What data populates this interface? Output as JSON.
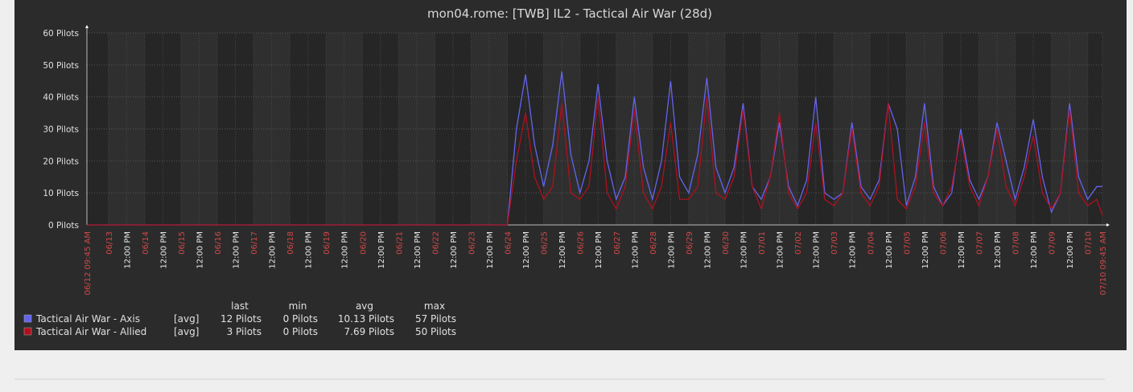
{
  "chart_data": {
    "type": "line",
    "title": "mon04.rome: [TWB] IL2 - Tactical Air War (28d)",
    "xlim": [
      "06/12 09:45 AM",
      "07/10 09:45 AM"
    ],
    "ylim": [
      0,
      60
    ],
    "yticks": [
      {
        "value": 0,
        "label": "0 Pilots"
      },
      {
        "value": 10,
        "label": "10 Pilots"
      },
      {
        "value": 20,
        "label": "20 Pilots"
      },
      {
        "value": 30,
        "label": "30 Pilots"
      },
      {
        "value": 40,
        "label": "40 Pilots"
      },
      {
        "value": 50,
        "label": "50 Pilots"
      },
      {
        "value": 60,
        "label": "60 Pilots"
      }
    ],
    "xticks": [
      {
        "value": "06/12 09:45 AM",
        "label": "06/12 09:45 AM"
      },
      {
        "value": "06/13 12:00 AM",
        "label": "06/13"
      },
      {
        "value": "06/13 12:00 PM",
        "label": "12:00 PM"
      },
      {
        "value": "06/14 12:00 AM",
        "label": "06/14"
      },
      {
        "value": "06/14 12:00 PM",
        "label": "12:00 PM"
      },
      {
        "value": "06/15 12:00 AM",
        "label": "06/15"
      },
      {
        "value": "06/15 12:00 PM",
        "label": "12:00 PM"
      },
      {
        "value": "06/16 12:00 AM",
        "label": "06/16"
      },
      {
        "value": "06/16 12:00 PM",
        "label": "12:00 PM"
      },
      {
        "value": "06/17 12:00 AM",
        "label": "06/17"
      },
      {
        "value": "06/17 12:00 PM",
        "label": "12:00 PM"
      },
      {
        "value": "06/18 12:00 AM",
        "label": "06/18"
      },
      {
        "value": "06/18 12:00 PM",
        "label": "12:00 PM"
      },
      {
        "value": "06/19 12:00 AM",
        "label": "06/19"
      },
      {
        "value": "06/19 12:00 PM",
        "label": "12:00 PM"
      },
      {
        "value": "06/20 12:00 AM",
        "label": "06/20"
      },
      {
        "value": "06/20 12:00 PM",
        "label": "12:00 PM"
      },
      {
        "value": "06/21 12:00 AM",
        "label": "06/21"
      },
      {
        "value": "06/21 12:00 PM",
        "label": "12:00 PM"
      },
      {
        "value": "06/22 12:00 AM",
        "label": "06/22"
      },
      {
        "value": "06/22 12:00 PM",
        "label": "12:00 PM"
      },
      {
        "value": "06/23 12:00 AM",
        "label": "06/23"
      },
      {
        "value": "06/23 12:00 PM",
        "label": "12:00 PM"
      },
      {
        "value": "06/24 12:00 AM",
        "label": "06/24"
      },
      {
        "value": "06/24 12:00 PM",
        "label": "12:00 PM"
      },
      {
        "value": "06/25 12:00 AM",
        "label": "06/25"
      },
      {
        "value": "06/25 12:00 PM",
        "label": "12:00 PM"
      },
      {
        "value": "06/26 12:00 AM",
        "label": "06/26"
      },
      {
        "value": "06/26 12:00 PM",
        "label": "12:00 PM"
      },
      {
        "value": "06/27 12:00 AM",
        "label": "06/27"
      },
      {
        "value": "06/27 12:00 PM",
        "label": "12:00 PM"
      },
      {
        "value": "06/28 12:00 AM",
        "label": "06/28"
      },
      {
        "value": "06/28 12:00 PM",
        "label": "12:00 PM"
      },
      {
        "value": "06/29 12:00 AM",
        "label": "06/29"
      },
      {
        "value": "06/29 12:00 PM",
        "label": "12:00 PM"
      },
      {
        "value": "06/30 12:00 AM",
        "label": "06/30"
      },
      {
        "value": "06/30 12:00 PM",
        "label": "12:00 PM"
      },
      {
        "value": "07/01 12:00 AM",
        "label": "07/01"
      },
      {
        "value": "07/01 12:00 PM",
        "label": "12:00 PM"
      },
      {
        "value": "07/02 12:00 AM",
        "label": "07/02"
      },
      {
        "value": "07/02 12:00 PM",
        "label": "12:00 PM"
      },
      {
        "value": "07/03 12:00 AM",
        "label": "07/03"
      },
      {
        "value": "07/03 12:00 PM",
        "label": "12:00 PM"
      },
      {
        "value": "07/04 12:00 AM",
        "label": "07/04"
      },
      {
        "value": "07/04 12:00 PM",
        "label": "12:00 PM"
      },
      {
        "value": "07/05 12:00 AM",
        "label": "07/05"
      },
      {
        "value": "07/05 12:00 PM",
        "label": "12:00 PM"
      },
      {
        "value": "07/06 12:00 AM",
        "label": "07/06"
      },
      {
        "value": "07/06 12:00 PM",
        "label": "12:00 PM"
      },
      {
        "value": "07/07 12:00 AM",
        "label": "07/07"
      },
      {
        "value": "07/07 12:00 PM",
        "label": "12:00 PM"
      },
      {
        "value": "07/08 12:00 AM",
        "label": "07/08"
      },
      {
        "value": "07/08 12:00 PM",
        "label": "12:00 PM"
      },
      {
        "value": "07/09 12:00 AM",
        "label": "07/09"
      },
      {
        "value": "07/09 12:00 PM",
        "label": "12:00 PM"
      },
      {
        "value": "07/10 12:00 AM",
        "label": "07/10"
      },
      {
        "value": "07/10 09:45 AM",
        "label": "07/10 09:45 AM"
      }
    ],
    "x": [
      "06/12 09:45 AM",
      "06/24 12:00 AM",
      "06/24 06:00 AM",
      "06/24 12:00 PM",
      "06/24 06:00 PM",
      "06/25 12:00 AM",
      "06/25 06:00 AM",
      "06/25 12:00 PM",
      "06/25 06:00 PM",
      "06/26 12:00 AM",
      "06/26 06:00 AM",
      "06/26 12:00 PM",
      "06/26 06:00 PM",
      "06/27 12:00 AM",
      "06/27 06:00 AM",
      "06/27 12:00 PM",
      "06/27 06:00 PM",
      "06/28 12:00 AM",
      "06/28 06:00 AM",
      "06/28 12:00 PM",
      "06/28 06:00 PM",
      "06/29 12:00 AM",
      "06/29 06:00 AM",
      "06/29 12:00 PM",
      "06/29 06:00 PM",
      "06/30 12:00 AM",
      "06/30 06:00 AM",
      "06/30 12:00 PM",
      "06/30 06:00 PM",
      "07/01 12:00 AM",
      "07/01 06:00 AM",
      "07/01 12:00 PM",
      "07/01 06:00 PM",
      "07/02 12:00 AM",
      "07/02 06:00 AM",
      "07/02 12:00 PM",
      "07/02 06:00 PM",
      "07/03 12:00 AM",
      "07/03 06:00 AM",
      "07/03 12:00 PM",
      "07/03 06:00 PM",
      "07/04 12:00 AM",
      "07/04 06:00 AM",
      "07/04 12:00 PM",
      "07/04 06:00 PM",
      "07/05 12:00 AM",
      "07/05 06:00 AM",
      "07/05 12:00 PM",
      "07/05 06:00 PM",
      "07/06 12:00 AM",
      "07/06 06:00 AM",
      "07/06 12:00 PM",
      "07/06 06:00 PM",
      "07/07 12:00 AM",
      "07/07 06:00 AM",
      "07/07 12:00 PM",
      "07/07 06:00 PM",
      "07/08 12:00 AM",
      "07/08 06:00 AM",
      "07/08 12:00 PM",
      "07/08 06:00 PM",
      "07/09 12:00 AM",
      "07/09 06:00 AM",
      "07/09 12:00 PM",
      "07/09 06:00 PM",
      "07/10 12:00 AM",
      "07/10 06:00 AM",
      "07/10 09:45 AM"
    ],
    "legend_headers": [
      "last",
      "min",
      "avg",
      "max"
    ],
    "series": [
      {
        "name": "Tactical Air War - Axis",
        "color": "#6464f0",
        "function": "[avg]",
        "legend_stats": [
          "12 Pilots",
          "0 Pilots",
          "10.13 Pilots",
          "57 Pilots"
        ],
        "values": [
          0,
          0,
          30,
          47,
          25,
          12,
          25,
          48,
          22,
          10,
          20,
          44,
          20,
          8,
          15,
          40,
          18,
          8,
          20,
          45,
          15,
          10,
          22,
          46,
          18,
          10,
          18,
          38,
          12,
          8,
          15,
          32,
          12,
          6,
          14,
          40,
          10,
          8,
          10,
          32,
          12,
          8,
          14,
          38,
          30,
          6,
          15,
          38,
          12,
          6,
          10,
          30,
          14,
          8,
          15,
          32,
          20,
          8,
          18,
          33,
          15,
          4,
          10,
          38,
          15,
          8,
          12,
          12
        ]
      },
      {
        "name": "Tactical Air War - Allied",
        "color": "#b0101e",
        "function": "[avg]",
        "legend_stats": [
          "3 Pilots",
          "0 Pilots",
          "7.69 Pilots",
          "50 Pilots"
        ],
        "values": [
          0,
          0,
          20,
          35,
          15,
          8,
          12,
          38,
          10,
          8,
          12,
          40,
          10,
          5,
          12,
          36,
          10,
          5,
          12,
          32,
          8,
          8,
          12,
          40,
          10,
          8,
          15,
          36,
          12,
          5,
          15,
          35,
          10,
          5,
          10,
          32,
          8,
          6,
          10,
          30,
          10,
          6,
          12,
          38,
          8,
          5,
          12,
          32,
          10,
          6,
          12,
          28,
          12,
          6,
          15,
          30,
          12,
          6,
          15,
          28,
          10,
          5,
          10,
          36,
          10,
          6,
          8,
          3
        ]
      }
    ]
  }
}
